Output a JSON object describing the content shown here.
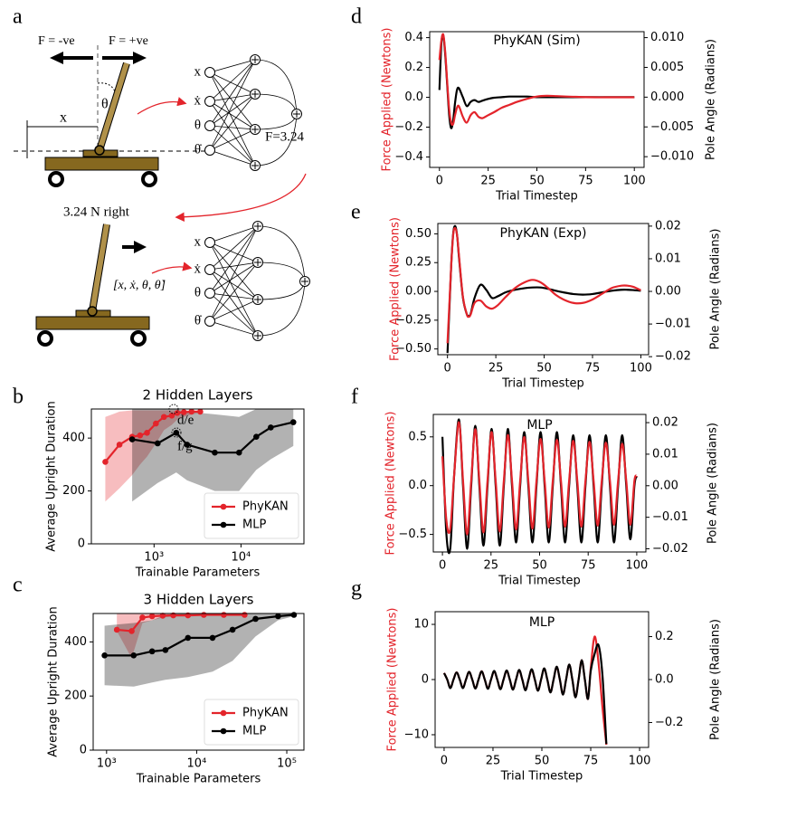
{
  "diagram": {
    "panel_label": "a",
    "force_negative": "F = -ve",
    "force_positive": "F = +ve",
    "position_label": "x",
    "angle_label": "θ",
    "inputs": [
      "x",
      "ẋ",
      "θ",
      "θ̇"
    ],
    "output_label": "F=3.24",
    "action_label": "3.24 N right",
    "state_vector": "[x, ẋ, θ, θ̇]"
  },
  "chart_data": [
    {
      "type": "line",
      "panel_label": "b",
      "title": "2 Hidden Layers",
      "xlabel": "Trainable Parameters",
      "ylabel": "Average Upright Duration",
      "xscale": "log",
      "xlim": [
        190,
        53000
      ],
      "xticks": [
        {
          "value": 1000,
          "label": "10³"
        },
        {
          "value": 10000,
          "label": "10⁴"
        }
      ],
      "ylim": [
        0,
        510
      ],
      "yticks": [
        0,
        200,
        400
      ],
      "legend": "lower right",
      "markers": true,
      "annotations": [
        "d/e",
        "f/g"
      ],
      "series": [
        {
          "name": "PhyKAN",
          "color": "#e3242b",
          "x": [
            275,
            400,
            560,
            690,
            830,
            1050,
            1300,
            1600,
            1850,
            2200,
            2700,
            3400
          ],
          "values": [
            310,
            375,
            405,
            410,
            420,
            455,
            480,
            485,
            495,
            498,
            500,
            500
          ],
          "band_lower": [
            160,
            210,
            260,
            300,
            330,
            380,
            430,
            450,
            470,
            480,
            490,
            495
          ],
          "band_upper": [
            480,
            500,
            505,
            505,
            505,
            505,
            505,
            505,
            505,
            505,
            505,
            505
          ]
        },
        {
          "name": "MLP",
          "color": "#000000",
          "x": [
            560,
            1100,
            1800,
            2400,
            5000,
            9500,
            15000,
            22000,
            40000
          ],
          "values": [
            395,
            380,
            420,
            375,
            345,
            345,
            405,
            440,
            460
          ],
          "band_lower": [
            160,
            230,
            270,
            240,
            200,
            200,
            280,
            320,
            370
          ],
          "band_upper": [
            510,
            510,
            510,
            500,
            490,
            480,
            510,
            510,
            510
          ]
        }
      ]
    },
    {
      "type": "line",
      "panel_label": "c",
      "title": "3 Hidden Layers",
      "xlabel": "Trainable Parameters",
      "ylabel": "Average Upright Duration",
      "xscale": "log",
      "xlim": [
        710,
        155000
      ],
      "xticks": [
        {
          "value": 1000,
          "label": "10³"
        },
        {
          "value": 10000,
          "label": "10⁴"
        },
        {
          "value": 100000,
          "label": "10⁵"
        }
      ],
      "ylim": [
        0,
        505
      ],
      "yticks": [
        0,
        200,
        400
      ],
      "legend": "lower right",
      "markers": true,
      "series": [
        {
          "name": "PhyKAN",
          "color": "#e3242b",
          "x": [
            1300,
            1900,
            2500,
            3200,
            4200,
            5500,
            8000,
            12000,
            20000,
            34000
          ],
          "values": [
            445,
            440,
            490,
            495,
            497,
            498,
            498,
            500,
            500,
            500
          ],
          "band_lower": [
            440,
            340,
            470,
            480,
            490,
            495,
            495,
            498,
            498,
            498
          ],
          "band_upper": [
            505,
            505,
            505,
            505,
            505,
            505,
            505,
            505,
            505,
            505
          ]
        },
        {
          "name": "MLP",
          "color": "#000000",
          "x": [
            950,
            2000,
            3200,
            4500,
            8000,
            15000,
            25000,
            45000,
            80000,
            120000
          ],
          "values": [
            350,
            350,
            365,
            370,
            415,
            415,
            445,
            485,
            495,
            500
          ],
          "band_lower": [
            240,
            235,
            250,
            260,
            270,
            290,
            330,
            420,
            480,
            495
          ],
          "band_upper": [
            460,
            470,
            480,
            500,
            505,
            505,
            505,
            505,
            505,
            505
          ]
        }
      ]
    },
    {
      "type": "line",
      "panel_label": "d",
      "title": "PhyKAN (Sim)",
      "xlabel": "Trial Timestep",
      "ylabel": "Force Applied (Newtons)",
      "y2label": "Pole Angle (Radians)",
      "xlim": [
        -5,
        105
      ],
      "xticks": [
        0,
        25,
        50,
        75,
        100
      ],
      "ylim": [
        -0.47,
        0.44
      ],
      "yticks": [
        {
          "value": -0.4,
          "label": "−0.4"
        },
        {
          "value": -0.2,
          "label": "−0.2"
        },
        {
          "value": 0,
          "label": "0.0"
        },
        0.2,
        0.4
      ],
      "y2lim": [
        -0.0118,
        0.011
      ],
      "y2ticks": [
        {
          "value": -0.01,
          "label": "−0.010"
        },
        {
          "value": -0.005,
          "label": "−0.005"
        },
        {
          "value": 0,
          "label": "0.000"
        },
        0.005,
        {
          "value": 0.01,
          "label": "0.010"
        }
      ],
      "x": [
        0,
        1,
        2,
        3,
        4,
        5,
        6,
        7,
        8,
        9,
        10,
        12,
        14,
        16,
        18,
        20,
        22,
        25,
        28,
        32,
        36,
        40,
        45,
        50,
        55,
        60,
        65,
        70,
        75,
        80,
        85,
        90,
        95,
        100
      ],
      "series": [
        {
          "color": "#000000",
          "axis": "y2",
          "values": [
            0.0012,
            0.009,
            0.0103,
            0.007,
            0.002,
            -0.003,
            -0.0052,
            -0.004,
            -0.001,
            0.0012,
            0.0015,
            0,
            -0.0015,
            -0.0008,
            -0.0005,
            -0.0008,
            -0.0006,
            -0.0003,
            -0.0001,
            0,
            0.0001,
            0.0001,
            0.0001,
            0,
            0,
            0,
            0,
            0,
            0,
            0,
            0,
            0,
            0,
            0
          ]
        },
        {
          "color": "#e3242b",
          "axis": "y",
          "values": [
            0.25,
            0.38,
            0.42,
            0.3,
            0.1,
            -0.08,
            -0.17,
            -0.18,
            -0.12,
            -0.07,
            -0.06,
            -0.13,
            -0.17,
            -0.12,
            -0.1,
            -0.13,
            -0.14,
            -0.12,
            -0.1,
            -0.07,
            -0.05,
            -0.03,
            -0.01,
            0.005,
            0.01,
            0.008,
            0.005,
            0.003,
            0.001,
            0,
            0,
            0,
            0,
            0
          ]
        }
      ]
    },
    {
      "type": "line",
      "panel_label": "e",
      "title": "PhyKAN (Exp)",
      "xlabel": "Trial Timestep",
      "ylabel": "Force Applied (Newtons)",
      "y2label": "Pole Angle (Radians)",
      "xlim": [
        -5,
        104
      ],
      "xticks": [
        0,
        25,
        50,
        75,
        100
      ],
      "ylim": [
        -0.55,
        0.59
      ],
      "yticks": [
        {
          "value": -0.5,
          "label": "−0.50"
        },
        {
          "value": -0.25,
          "label": "−0.25"
        },
        {
          "value": 0,
          "label": "0.00"
        },
        0.25,
        {
          "value": 0.5,
          "label": "0.50"
        }
      ],
      "y2lim": [
        -0.0194,
        0.0208
      ],
      "y2ticks": [
        {
          "value": -0.02,
          "label": "−0.02"
        },
        {
          "value": -0.01,
          "label": "−0.01"
        },
        {
          "value": 0,
          "label": "0.00"
        },
        0.01,
        0.02
      ],
      "x": [
        0,
        1,
        2,
        3,
        4,
        5,
        6,
        8,
        10,
        11,
        12,
        14,
        17,
        20,
        23,
        26,
        30,
        35,
        40,
        44,
        48,
        52,
        56,
        60,
        65,
        70,
        75,
        80,
        85,
        90,
        93,
        96,
        100
      ],
      "series": [
        {
          "color": "#000000",
          "axis": "y2",
          "values": [
            -0.0189,
            -0.005,
            0.009,
            0.018,
            0.02,
            0.017,
            0.01,
            -0.002,
            -0.007,
            -0.0075,
            -0.0068,
            -0.002,
            0.002,
            0.0005,
            -0.002,
            -0.0015,
            -0.0003,
            0.0005,
            0.001,
            0.0012,
            0.0012,
            0.0008,
            0.0002,
            -0.0003,
            -0.0008,
            -0.001,
            -0.0008,
            -0.0003,
            0.0002,
            0.0005,
            0.0005,
            0.0004,
            0.0002
          ]
        },
        {
          "color": "#e3242b",
          "axis": "y",
          "values": [
            -0.45,
            -0.1,
            0.25,
            0.5,
            0.55,
            0.48,
            0.3,
            -0.05,
            -0.2,
            -0.22,
            -0.2,
            -0.1,
            -0.08,
            -0.13,
            -0.15,
            -0.12,
            -0.05,
            0.03,
            0.08,
            0.1,
            0.08,
            0.03,
            -0.03,
            -0.07,
            -0.1,
            -0.1,
            -0.07,
            -0.02,
            0.03,
            0.05,
            0.05,
            0.04,
            0.01
          ]
        }
      ]
    },
    {
      "type": "line",
      "panel_label": "f",
      "title": "MLP",
      "xlabel": "Trial Timestep",
      "ylabel": "Force Applied (Newtons)",
      "y2label": "Pole Angle (Radians)",
      "xlim": [
        -4.7,
        104.7
      ],
      "xticks": [
        0,
        25,
        50,
        75,
        100
      ],
      "ylim": [
        -0.68,
        0.73
      ],
      "yticks": [
        {
          "value": -0.5,
          "label": "−0.5"
        },
        {
          "value": 0,
          "label": "0.0"
        },
        0.5
      ],
      "y2lim": [
        -0.021,
        0.0226
      ],
      "y2ticks": [
        {
          "value": -0.02,
          "label": "−0.02"
        },
        {
          "value": -0.01,
          "label": "−0.01"
        },
        {
          "value": 0,
          "label": "0.00"
        },
        0.01,
        0.02
      ],
      "x": [
        0,
        2,
        4,
        6,
        8.5,
        10.6,
        12.7,
        14.8,
        16.9,
        19,
        21.1,
        23.2,
        25.3,
        27.4,
        29.5,
        31.6,
        33.7,
        35.8,
        37.9,
        40,
        42.1,
        44.2,
        46.3,
        48.4,
        50.5,
        52.6,
        54.7,
        56.8,
        58.9,
        61,
        63.1,
        65.2,
        67.3,
        69.4,
        71.5,
        73.6,
        75.7,
        77.8,
        79.9,
        82,
        84.1,
        86.2,
        88.3,
        90.4,
        92.5,
        94.6,
        96.7,
        98.8,
        100
      ],
      "series": [
        {
          "color": "#000000",
          "axis": "y2",
          "values": [
            0.0155,
            -0.015,
            -0.02,
            0.003,
            0.021,
            0,
            -0.02,
            0,
            0.019,
            0,
            -0.019,
            0,
            0.018,
            0,
            -0.019,
            0,
            0.018,
            0,
            -0.018,
            0,
            0.017,
            0,
            -0.018,
            0,
            0.017,
            0,
            -0.018,
            0,
            0.017,
            0,
            -0.018,
            0,
            0.016,
            0,
            -0.018,
            0,
            0.016,
            0,
            -0.018,
            0,
            0.016,
            0,
            -0.018,
            0,
            0.016,
            0,
            -0.017,
            0,
            0.003
          ]
        },
        {
          "color": "#e3242b",
          "axis": "y",
          "values": [
            0.3,
            -0.35,
            -0.45,
            0.1,
            0.65,
            0.05,
            -0.5,
            0.05,
            0.58,
            0.05,
            -0.48,
            0.05,
            0.55,
            0.05,
            -0.47,
            0.05,
            0.52,
            0.05,
            -0.45,
            0.05,
            0.5,
            0.05,
            -0.44,
            0.05,
            0.48,
            0.05,
            -0.43,
            0.05,
            0.47,
            0.05,
            -0.42,
            0.05,
            0.46,
            0.05,
            -0.42,
            0.05,
            0.45,
            0.05,
            -0.41,
            0.05,
            0.44,
            0.05,
            -0.4,
            0.05,
            0.43,
            0.05,
            -0.4,
            0.05,
            0.1
          ]
        }
      ]
    },
    {
      "type": "line",
      "panel_label": "g",
      "title": "MLP",
      "xlabel": "Trial Timestep",
      "ylabel": "Force Applied (Newtons)",
      "y2label": "Pole Angle (Radians)",
      "xlim": [
        -4.6,
        104.6
      ],
      "xticks": [
        0,
        25,
        50,
        75,
        100
      ],
      "ylim": [
        -12.3,
        12.3
      ],
      "yticks": [
        {
          "value": -10,
          "label": "−10"
        },
        0,
        10
      ],
      "y2lim": [
        -0.316,
        0.316
      ],
      "y2ticks": [
        {
          "value": -0.2,
          "label": "−0.2"
        },
        {
          "value": 0,
          "label": "0.0"
        },
        0.2
      ],
      "x": [
        0,
        1.6,
        3.2,
        4.8,
        6.4,
        8,
        9.6,
        11.2,
        12.8,
        14.4,
        16,
        17.6,
        19.2,
        20.8,
        22.4,
        24,
        25.6,
        27.2,
        28.8,
        30.4,
        32,
        33.6,
        35.2,
        36.8,
        38.4,
        40,
        41.6,
        43.2,
        44.8,
        46.4,
        48,
        49.6,
        51.2,
        52.8,
        54.4,
        56,
        57.6,
        59.2,
        60.8,
        62.4,
        64,
        65.6,
        67.2,
        68.8,
        70.4,
        72,
        73.6,
        75,
        77,
        79,
        81,
        83
      ],
      "series": [
        {
          "color": "#e3242b",
          "axis": "y",
          "values": [
            1.2,
            0,
            -1.5,
            0,
            1.3,
            0,
            -1.5,
            0,
            1.4,
            0,
            -1.6,
            0,
            1.5,
            0,
            -1.6,
            0,
            1.5,
            0,
            -1.7,
            0,
            1.6,
            0,
            -1.8,
            0,
            1.7,
            0,
            -1.9,
            0,
            1.8,
            0,
            -2.0,
            0,
            2.0,
            0,
            -2.3,
            0,
            2.3,
            0,
            -2.7,
            0,
            2.7,
            0,
            -3.2,
            0,
            3.5,
            0,
            -3.5,
            2,
            7.8,
            3,
            -5,
            -11.8
          ]
        },
        {
          "color": "#000000",
          "axis": "y2",
          "values": [
            0.03,
            0,
            -0.04,
            0,
            0.033,
            0,
            -0.04,
            0,
            0.036,
            0,
            -0.042,
            0,
            0.038,
            0,
            -0.043,
            0,
            0.04,
            0,
            -0.045,
            0,
            0.042,
            0,
            -0.047,
            0,
            0.045,
            0,
            -0.05,
            0,
            0.048,
            0,
            -0.052,
            0,
            0.052,
            0,
            -0.06,
            0,
            0.06,
            0,
            -0.07,
            0,
            0.07,
            0,
            -0.083,
            0,
            0.09,
            0,
            -0.09,
            0.04,
            0.12,
            0.16,
            0.02,
            -0.3
          ]
        }
      ]
    }
  ]
}
